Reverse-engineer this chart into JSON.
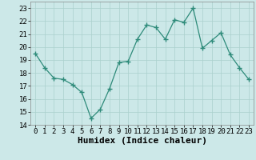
{
  "x": [
    0,
    1,
    2,
    3,
    4,
    5,
    6,
    7,
    8,
    9,
    10,
    11,
    12,
    13,
    14,
    15,
    16,
    17,
    18,
    19,
    20,
    21,
    22,
    23
  ],
  "y": [
    19.5,
    18.4,
    17.6,
    17.5,
    17.1,
    16.5,
    14.5,
    15.2,
    16.8,
    18.8,
    18.9,
    20.6,
    21.7,
    21.5,
    20.6,
    22.1,
    21.9,
    23.0,
    19.9,
    20.5,
    21.1,
    19.4,
    18.4,
    17.5
  ],
  "line_color": "#2e8b7a",
  "marker": "+",
  "marker_size": 4,
  "bg_color": "#cce8e8",
  "grid_color": "#aad0cc",
  "xlabel": "Humidex (Indice chaleur)",
  "ylim": [
    14,
    23.5
  ],
  "xlim": [
    -0.5,
    23.5
  ],
  "yticks": [
    14,
    15,
    16,
    17,
    18,
    19,
    20,
    21,
    22,
    23
  ],
  "xticks": [
    0,
    1,
    2,
    3,
    4,
    5,
    6,
    7,
    8,
    9,
    10,
    11,
    12,
    13,
    14,
    15,
    16,
    17,
    18,
    19,
    20,
    21,
    22,
    23
  ],
  "tick_fontsize": 6.5,
  "label_fontsize": 8
}
